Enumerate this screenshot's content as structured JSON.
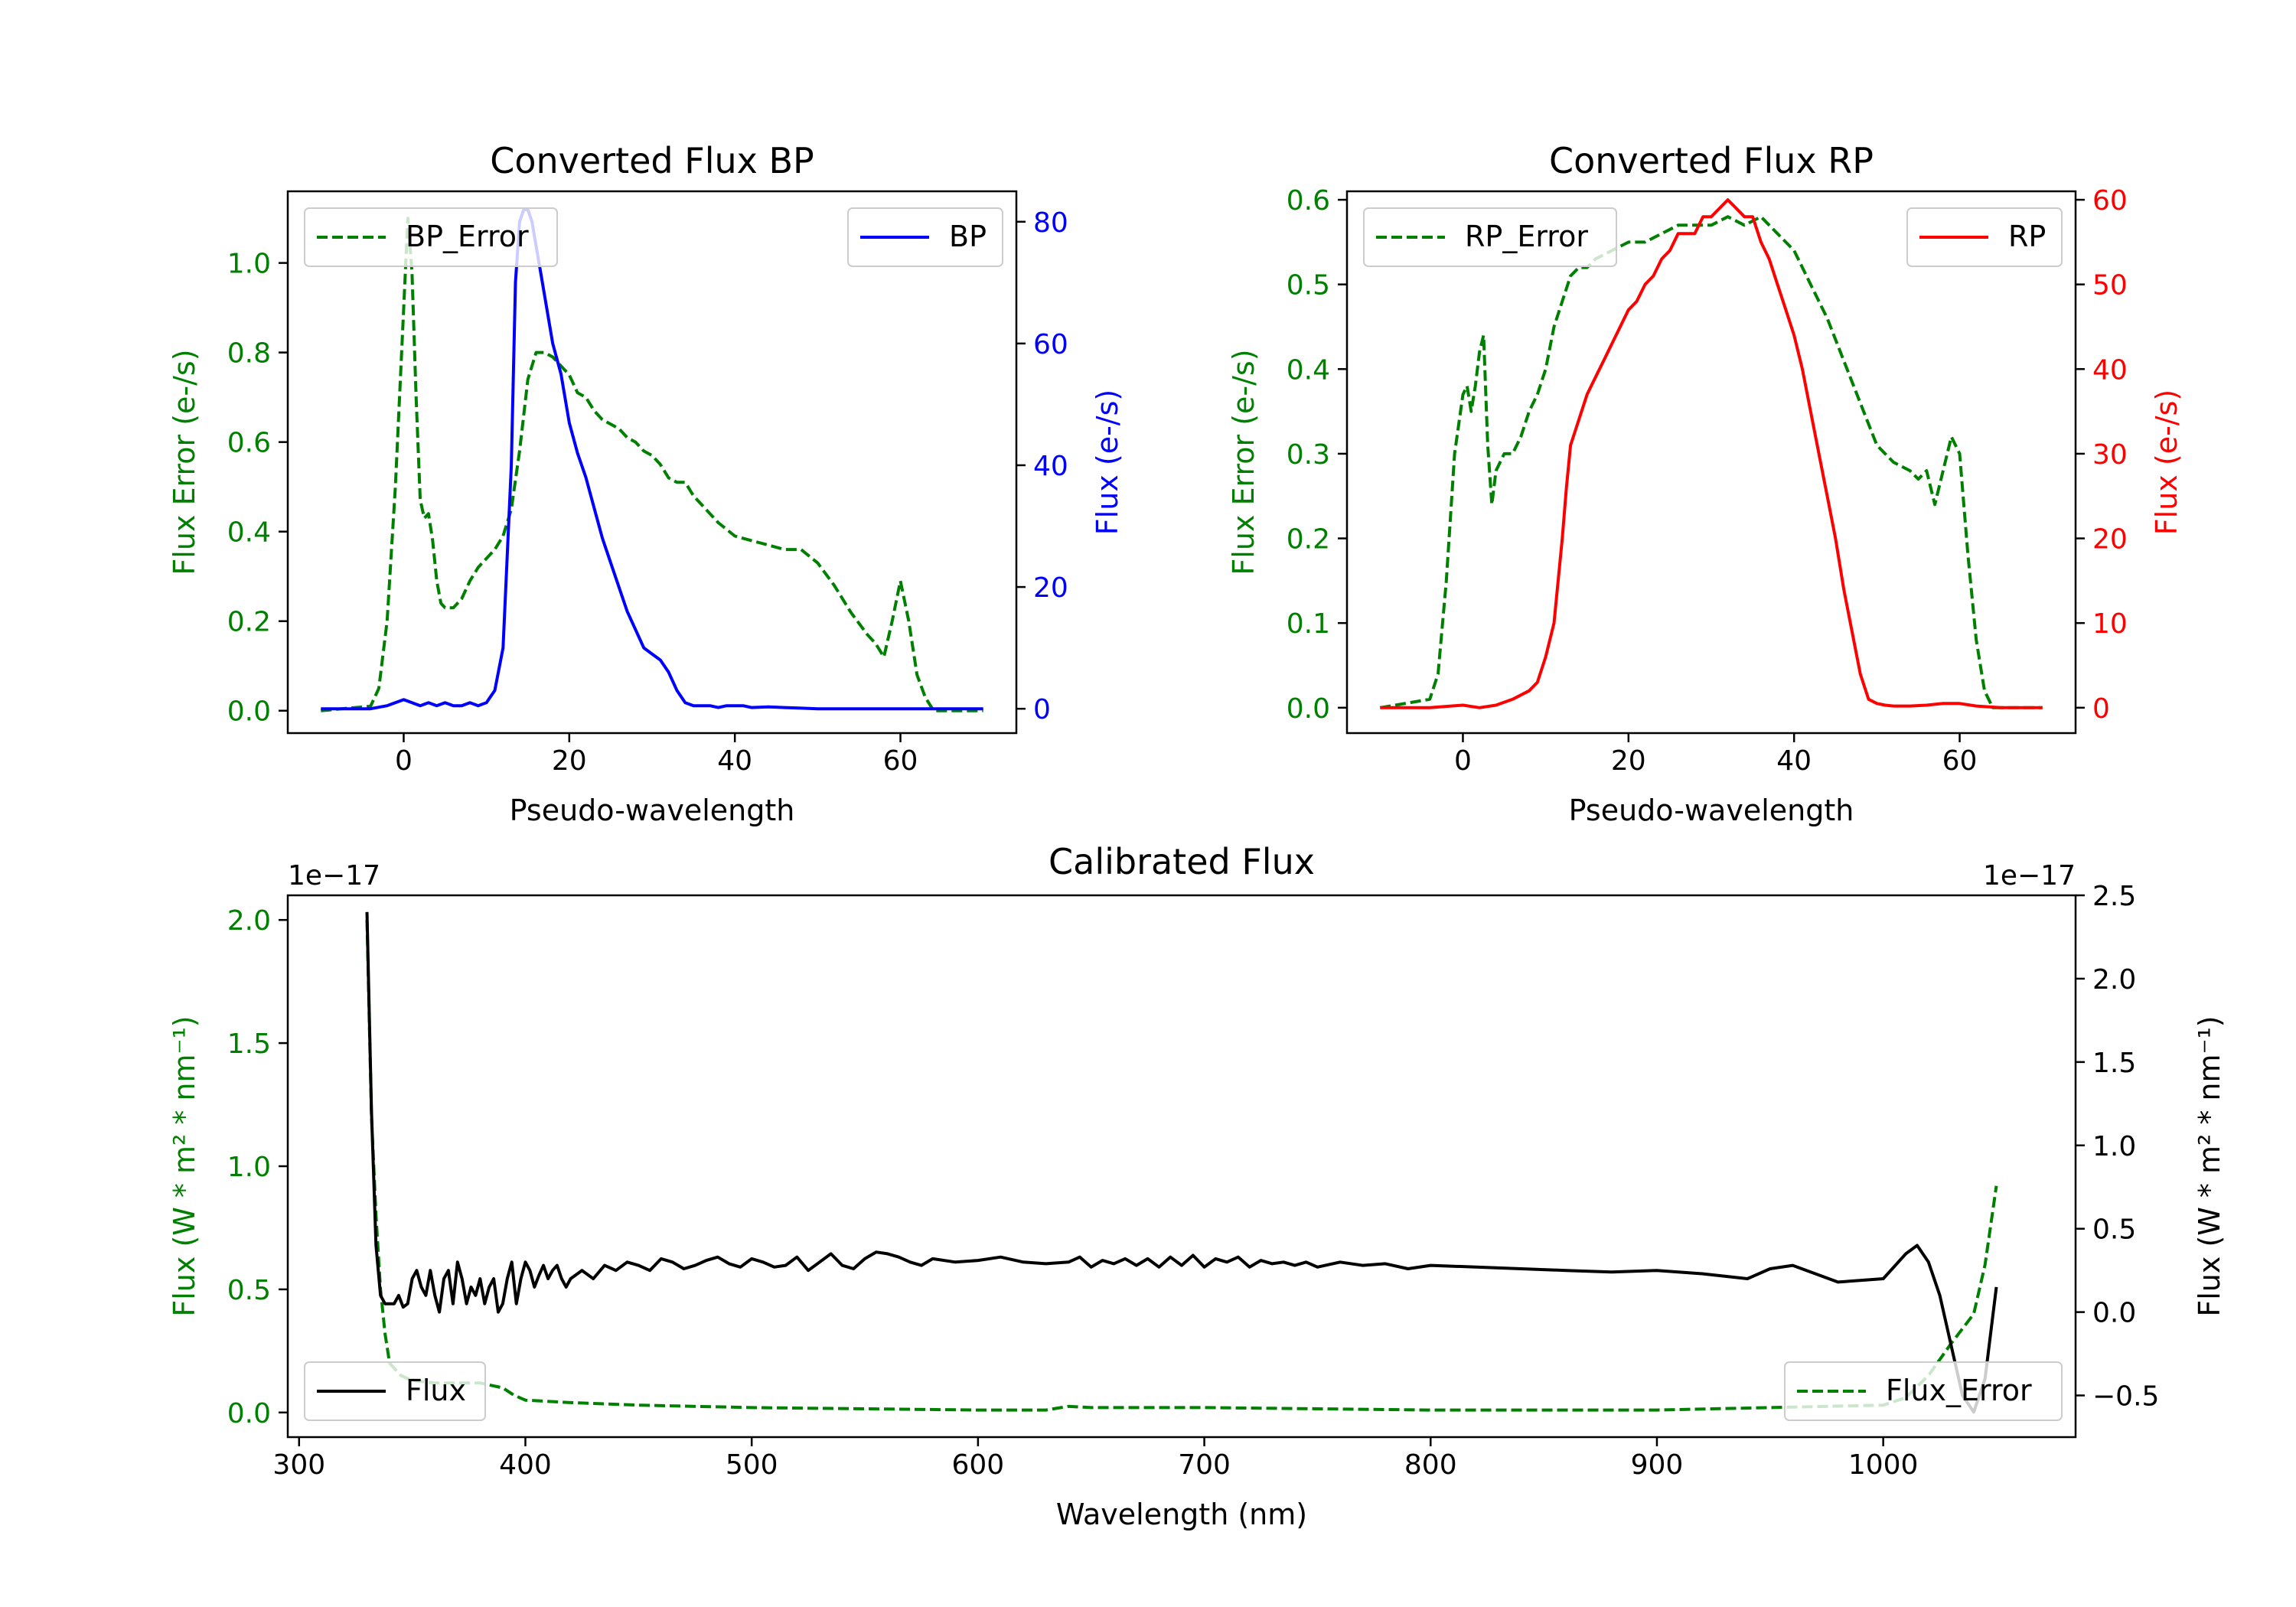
{
  "chart_data": [
    {
      "type": "line",
      "title": "Converted Flux BP",
      "xlabel": "Pseudo-wavelength",
      "xlim": [
        -14,
        74
      ],
      "x_ticks": [
        "0",
        "20",
        "40",
        "60"
      ],
      "left_axis": {
        "label": "Flux Error (e-/s)",
        "color": "#008000",
        "ylim": [
          -0.05,
          1.16
        ],
        "ticks": [
          "0.0",
          "0.2",
          "0.4",
          "0.6",
          "0.8",
          "1.0"
        ]
      },
      "right_axis": {
        "label": "Flux (e-/s)",
        "color": "#0000ff",
        "ylim": [
          -4,
          85
        ],
        "ticks": [
          "0",
          "20",
          "40",
          "60",
          "80"
        ]
      },
      "series": [
        {
          "name": "BP_Error",
          "axis": "left",
          "color": "#008000",
          "style": "dashed",
          "legend": "top-left",
          "x": [
            -10,
            -4,
            -3,
            -2,
            -1,
            0,
            0.5,
            1,
            1.5,
            2,
            2.5,
            3,
            3.5,
            4,
            4.5,
            5,
            6,
            7,
            8,
            9,
            10,
            11,
            12,
            13,
            14,
            15,
            16,
            17,
            18,
            19,
            20,
            21,
            22,
            23,
            24,
            25,
            26,
            27,
            28,
            29,
            30,
            31,
            32,
            33,
            34,
            35,
            36,
            37,
            38,
            40,
            42,
            44,
            46,
            48,
            50,
            52,
            54,
            56,
            57,
            58,
            59,
            60,
            61,
            62,
            63,
            64,
            66,
            70
          ],
          "y": [
            0,
            0.01,
            0.05,
            0.2,
            0.5,
            0.9,
            1.1,
            0.98,
            0.7,
            0.47,
            0.43,
            0.44,
            0.38,
            0.29,
            0.24,
            0.23,
            0.23,
            0.25,
            0.29,
            0.32,
            0.34,
            0.36,
            0.39,
            0.45,
            0.58,
            0.74,
            0.8,
            0.8,
            0.79,
            0.77,
            0.75,
            0.71,
            0.7,
            0.67,
            0.65,
            0.64,
            0.63,
            0.61,
            0.6,
            0.58,
            0.57,
            0.55,
            0.52,
            0.51,
            0.51,
            0.48,
            0.46,
            0.44,
            0.42,
            0.39,
            0.38,
            0.37,
            0.36,
            0.36,
            0.33,
            0.28,
            0.22,
            0.17,
            0.15,
            0.12,
            0.2,
            0.29,
            0.2,
            0.08,
            0.03,
            0,
            0,
            0
          ]
        },
        {
          "name": "BP",
          "axis": "right",
          "color": "#0000ff",
          "style": "solid",
          "legend": "top-right",
          "x": [
            -10,
            -6,
            -4,
            -2,
            0,
            1,
            2,
            3,
            4,
            5,
            6,
            7,
            8,
            9,
            10,
            11,
            12,
            13,
            13.5,
            14,
            14.5,
            15,
            15.5,
            16,
            16.5,
            17,
            17.5,
            18,
            19,
            20,
            21,
            22,
            23,
            24,
            25,
            26,
            27,
            28,
            29,
            30,
            31,
            32,
            33,
            34,
            35,
            36,
            37,
            38,
            39,
            40,
            41,
            42,
            44,
            46,
            48,
            50,
            55,
            60,
            65,
            70
          ],
          "y": [
            0,
            0,
            0,
            0.5,
            1.5,
            1,
            0.5,
            1,
            0.5,
            1,
            0.5,
            0.5,
            1,
            0.5,
            1,
            3,
            10,
            40,
            70,
            80,
            82,
            82,
            80,
            76,
            72,
            68,
            64,
            60,
            55,
            47,
            42,
            38,
            33,
            28,
            24,
            20,
            16,
            13,
            10,
            9,
            8,
            6,
            3,
            1,
            0.5,
            0.5,
            0.5,
            0.2,
            0.5,
            0.5,
            0.5,
            0.2,
            0.3,
            0.2,
            0.1,
            0,
            0,
            0,
            0,
            0
          ]
        }
      ]
    },
    {
      "type": "line",
      "title": "Converted Flux RP",
      "xlabel": "Pseudo-wavelength",
      "xlim": [
        -14,
        74
      ],
      "x_ticks": [
        "0",
        "20",
        "40",
        "60"
      ],
      "left_axis": {
        "label": "Flux Error (e-/s)",
        "color": "#008000",
        "ylim": [
          -0.03,
          0.61
        ],
        "ticks": [
          "0.0",
          "0.1",
          "0.2",
          "0.3",
          "0.4",
          "0.5",
          "0.6"
        ]
      },
      "right_axis": {
        "label": "Flux (e-/s)",
        "color": "#ff0000",
        "ylim": [
          -3,
          61
        ],
        "ticks": [
          "0",
          "10",
          "20",
          "30",
          "40",
          "50",
          "60"
        ]
      },
      "series": [
        {
          "name": "RP_Error",
          "axis": "left",
          "color": "#008000",
          "style": "dashed",
          "legend": "top-left",
          "x": [
            -10,
            -4,
            -3,
            -2,
            -1,
            0,
            0.5,
            1,
            1.5,
            2,
            2.5,
            3,
            3.5,
            4,
            5,
            6,
            7,
            8,
            9,
            10,
            11,
            12,
            13,
            14,
            15,
            16,
            18,
            20,
            22,
            24,
            26,
            28,
            30,
            32,
            34,
            36,
            38,
            40,
            42,
            44,
            46,
            48,
            50,
            52,
            54,
            55,
            56,
            57,
            58,
            59,
            60,
            61,
            62,
            63,
            64,
            65,
            70
          ],
          "y": [
            0,
            0.01,
            0.04,
            0.15,
            0.3,
            0.37,
            0.38,
            0.35,
            0.38,
            0.42,
            0.44,
            0.31,
            0.24,
            0.28,
            0.3,
            0.3,
            0.32,
            0.35,
            0.37,
            0.4,
            0.45,
            0.48,
            0.51,
            0.52,
            0.52,
            0.53,
            0.54,
            0.55,
            0.55,
            0.56,
            0.57,
            0.57,
            0.57,
            0.58,
            0.57,
            0.58,
            0.56,
            0.54,
            0.5,
            0.46,
            0.41,
            0.36,
            0.31,
            0.29,
            0.28,
            0.27,
            0.28,
            0.24,
            0.28,
            0.32,
            0.3,
            0.18,
            0.08,
            0.02,
            0,
            0,
            0
          ]
        },
        {
          "name": "RP",
          "axis": "right",
          "color": "#ff0000",
          "style": "solid",
          "legend": "top-right",
          "x": [
            -10,
            -4,
            0,
            2,
            4,
            6,
            8,
            9,
            10,
            11,
            11.5,
            12,
            12.5,
            13,
            14,
            15,
            16,
            17,
            18,
            19,
            20,
            21,
            22,
            23,
            24,
            25,
            26,
            27,
            28,
            29,
            30,
            31,
            32,
            33,
            34,
            35,
            36,
            37,
            38,
            39,
            40,
            41,
            42,
            43,
            44,
            45,
            46,
            47,
            48,
            49,
            50,
            51,
            52,
            54,
            56,
            58,
            60,
            62,
            65,
            70
          ],
          "y": [
            0,
            0,
            0.3,
            0,
            0.3,
            1,
            2,
            3,
            6,
            10,
            15,
            20,
            26,
            31,
            34,
            37,
            39,
            41,
            43,
            45,
            47,
            48,
            50,
            51,
            53,
            54,
            56,
            56,
            56,
            58,
            58,
            59,
            60,
            59,
            58,
            58,
            55,
            53,
            50,
            47,
            44,
            40,
            35,
            30,
            25,
            20,
            14,
            9,
            4,
            1,
            0.5,
            0.3,
            0.2,
            0.2,
            0.3,
            0.5,
            0.5,
            0.2,
            0,
            0
          ]
        }
      ]
    },
    {
      "type": "line",
      "title": "Calibrated Flux",
      "xlabel": "Wavelength (nm)",
      "xlim": [
        295,
        1085
      ],
      "x_ticks": [
        "300",
        "400",
        "500",
        "600",
        "700",
        "800",
        "900",
        "1000"
      ],
      "left_axis": {
        "label": "Flux (W * m² * nm⁻¹)",
        "color": "#008000",
        "ylim": [
          -0.1,
          2.1
        ],
        "offset_label": "1e−17",
        "ticks": [
          "0.0",
          "0.5",
          "1.0",
          "1.5",
          "2.0"
        ]
      },
      "right_axis": {
        "label": "Flux (W * m² * nm⁻¹)",
        "color": "#000000",
        "ylim": [
          -0.75,
          2.5
        ],
        "offset_label": "1e−17",
        "ticks": [
          "−0.5",
          "0.0",
          "0.5",
          "1.0",
          "1.5",
          "2.0",
          "2.5"
        ]
      },
      "series": [
        {
          "name": "Flux_Error",
          "axis": "left",
          "color": "#008000",
          "style": "dashed",
          "legend": "bottom-right",
          "x": [
            330,
            332,
            334,
            336,
            338,
            340,
            345,
            350,
            360,
            370,
            380,
            385,
            390,
            395,
            400,
            420,
            450,
            500,
            550,
            600,
            630,
            640,
            650,
            700,
            800,
            900,
            950,
            1000,
            1010,
            1020,
            1030,
            1040,
            1045,
            1050
          ],
          "y": [
            2.0,
            1.2,
            0.8,
            0.5,
            0.32,
            0.2,
            0.15,
            0.13,
            0.12,
            0.12,
            0.12,
            0.11,
            0.1,
            0.07,
            0.05,
            0.04,
            0.03,
            0.02,
            0.015,
            0.01,
            0.01,
            0.025,
            0.02,
            0.02,
            0.01,
            0.01,
            0.02,
            0.03,
            0.06,
            0.15,
            0.28,
            0.4,
            0.6,
            0.92
          ]
        },
        {
          "name": "Flux",
          "axis": "right",
          "color": "#000000",
          "style": "solid",
          "legend": "bottom-left",
          "x": [
            330,
            332,
            334,
            336,
            338,
            340,
            342,
            344,
            346,
            348,
            350,
            352,
            354,
            356,
            358,
            360,
            362,
            364,
            366,
            368,
            370,
            372,
            374,
            376,
            378,
            380,
            382,
            384,
            386,
            388,
            390,
            392,
            394,
            396,
            398,
            400,
            402,
            404,
            406,
            408,
            410,
            412,
            414,
            416,
            418,
            420,
            425,
            430,
            435,
            440,
            445,
            450,
            455,
            460,
            465,
            470,
            475,
            480,
            485,
            490,
            495,
            500,
            505,
            510,
            515,
            520,
            525,
            530,
            535,
            540,
            545,
            550,
            555,
            560,
            565,
            570,
            575,
            580,
            590,
            600,
            610,
            620,
            630,
            640,
            645,
            650,
            655,
            660,
            665,
            670,
            675,
            680,
            685,
            690,
            695,
            700,
            705,
            710,
            715,
            720,
            725,
            730,
            735,
            740,
            745,
            750,
            760,
            770,
            780,
            790,
            800,
            820,
            840,
            860,
            880,
            900,
            920,
            940,
            950,
            960,
            980,
            1000,
            1010,
            1015,
            1020,
            1025,
            1030,
            1035,
            1040,
            1045,
            1050
          ],
          "y": [
            2.4,
            1.2,
            0.4,
            0.1,
            0.05,
            0.05,
            0.05,
            0.1,
            0.03,
            0.05,
            0.2,
            0.25,
            0.15,
            0.1,
            0.25,
            0.1,
            0.0,
            0.2,
            0.25,
            0.05,
            0.3,
            0.2,
            0.05,
            0.15,
            0.1,
            0.2,
            0.05,
            0.15,
            0.2,
            0.0,
            0.05,
            0.2,
            0.3,
            0.05,
            0.2,
            0.3,
            0.25,
            0.15,
            0.22,
            0.28,
            0.2,
            0.25,
            0.28,
            0.2,
            0.15,
            0.2,
            0.25,
            0.2,
            0.28,
            0.25,
            0.3,
            0.28,
            0.25,
            0.32,
            0.3,
            0.26,
            0.28,
            0.31,
            0.33,
            0.29,
            0.27,
            0.32,
            0.3,
            0.27,
            0.28,
            0.33,
            0.25,
            0.3,
            0.35,
            0.28,
            0.26,
            0.32,
            0.36,
            0.35,
            0.33,
            0.3,
            0.28,
            0.32,
            0.3,
            0.31,
            0.33,
            0.3,
            0.29,
            0.3,
            0.33,
            0.27,
            0.31,
            0.29,
            0.32,
            0.28,
            0.32,
            0.27,
            0.33,
            0.28,
            0.34,
            0.27,
            0.32,
            0.3,
            0.33,
            0.27,
            0.31,
            0.29,
            0.3,
            0.28,
            0.3,
            0.27,
            0.3,
            0.28,
            0.29,
            0.26,
            0.28,
            0.27,
            0.26,
            0.25,
            0.24,
            0.25,
            0.23,
            0.2,
            0.26,
            0.28,
            0.18,
            0.2,
            0.35,
            0.4,
            0.3,
            0.1,
            -0.2,
            -0.5,
            -0.6,
            -0.4,
            0.15
          ]
        }
      ]
    }
  ]
}
